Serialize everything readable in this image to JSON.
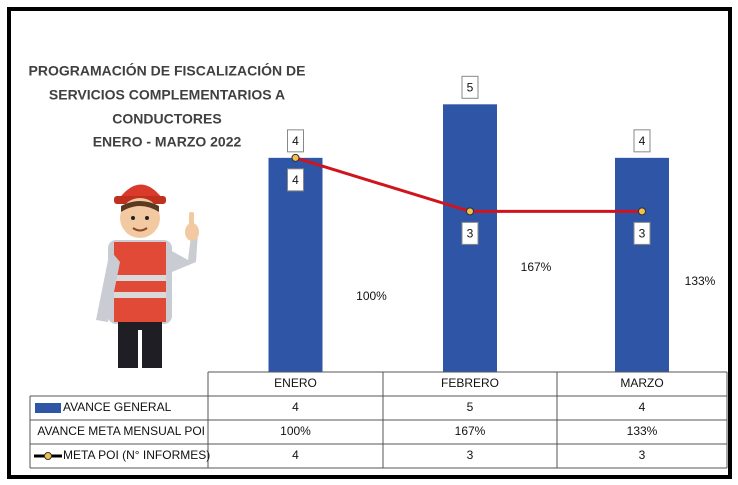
{
  "chart_data": {
    "type": "bar_line",
    "title": [
      "PROGRAMACIÓN DE FISCALIZACIÓN DE",
      "SERVICIOS COMPLEMENTARIOS A",
      "CONDUCTORES",
      "ENERO - MARZO 2022"
    ],
    "categories": [
      "ENERO",
      "FEBRERO",
      "MARZO"
    ],
    "ylim": [
      0,
      6.5
    ],
    "series": [
      {
        "name": "AVANCE GENERAL",
        "type": "bar",
        "color": "#2f55a6",
        "values": [
          4,
          5,
          4
        ]
      },
      {
        "name": "AVANCE META MENSUAL POI",
        "type": "label",
        "values": [
          100,
          167,
          133
        ],
        "value_labels": [
          "100%",
          "167%",
          "133%"
        ]
      },
      {
        "name": "META POI (N° INFORMES)",
        "type": "line",
        "color": "#d0141e",
        "marker_color": "#f2c14e",
        "values": [
          4,
          3,
          3
        ]
      }
    ]
  }
}
